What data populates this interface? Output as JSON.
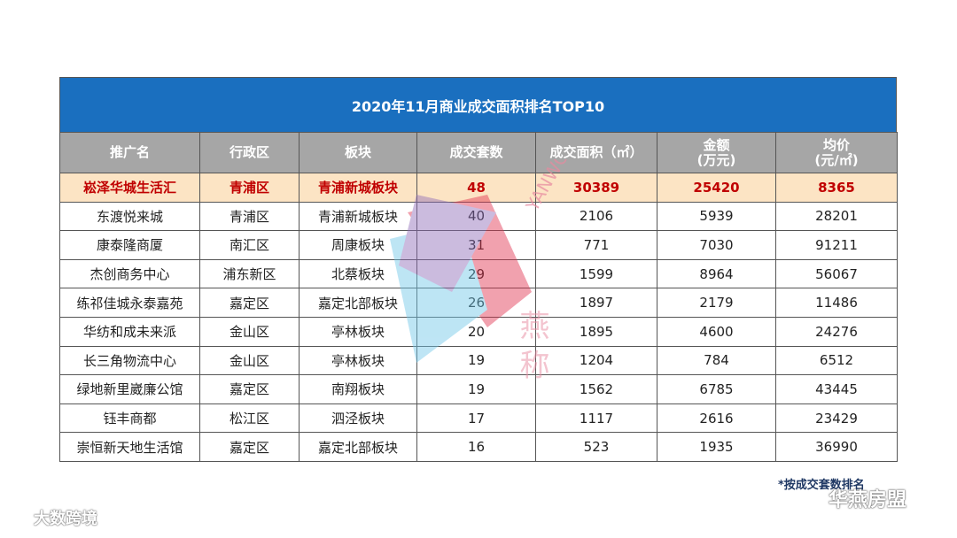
{
  "table": {
    "title": "2020年11月商业成交面积排名TOP10",
    "headers": [
      {
        "line1": "推广名",
        "line2": ""
      },
      {
        "line1": "行政区",
        "line2": ""
      },
      {
        "line1": "板块",
        "line2": ""
      },
      {
        "line1": "成交套数",
        "line2": ""
      },
      {
        "line1": "成交面积（㎡）",
        "line2": ""
      },
      {
        "line1": "金额",
        "line2": "(万元)"
      },
      {
        "line1": "均价",
        "line2": "(元/㎡)"
      }
    ],
    "rows": [
      [
        "崧泽华城生活汇",
        "青浦区",
        "青浦新城板块",
        "48",
        "30389",
        "25420",
        "8365"
      ],
      [
        "东渡悦来城",
        "青浦区",
        "青浦新城板块",
        "40",
        "2106",
        "5939",
        "28201"
      ],
      [
        "康泰隆商厦",
        "南汇区",
        "周康板块",
        "31",
        "771",
        "7030",
        "91211"
      ],
      [
        "杰创商务中心",
        "浦东新区",
        "北蔡板块",
        "29",
        "1599",
        "8964",
        "56067"
      ],
      [
        "练祁佳城永泰嘉苑",
        "嘉定区",
        "嘉定北部板块",
        "26",
        "1897",
        "2179",
        "11486"
      ],
      [
        "华纺和成未来派",
        "金山区",
        "亭林板块",
        "20",
        "1895",
        "4600",
        "24276"
      ],
      [
        "长三角物流中心",
        "金山区",
        "亭林板块",
        "19",
        "1204",
        "784",
        "6512"
      ],
      [
        "绿地新里崴廉公馆",
        "嘉定区",
        "南翔板块",
        "19",
        "1562",
        "6785",
        "43445"
      ],
      [
        "钰丰商都",
        "松江区",
        "泗泾板块",
        "17",
        "1117",
        "2616",
        "23429"
      ],
      [
        "崇恒新天地生活馆",
        "嘉定区",
        "嘉定北部板块",
        "16",
        "523",
        "1935",
        "36990"
      ]
    ],
    "highlight_row_index": 0
  },
  "footnote": "*按成交套数排名",
  "watermarks": {
    "left_text": "大数跨境",
    "right_text": "华燕房盟",
    "center_text_1": "YANWO",
    "center_text_2": "燕 称"
  },
  "colors": {
    "title_bar": "#1a6fbf",
    "header_bg": "#a6a6a6",
    "highlight_bg": "#fce4c4",
    "highlight_text": "#c00000"
  }
}
